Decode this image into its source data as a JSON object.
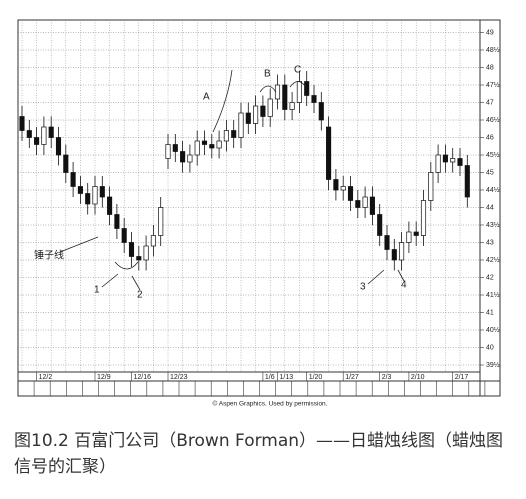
{
  "chart_data": {
    "type": "candlestick",
    "categories": [
      null,
      null,
      "12/2",
      null,
      null,
      null,
      null,
      null,
      null,
      null,
      "12/9",
      null,
      null,
      null,
      null,
      "12/16",
      null,
      null,
      null,
      null,
      "12/23",
      null,
      null,
      null,
      null,
      null,
      null,
      null,
      null,
      null,
      null,
      null,
      null,
      "1/6",
      null,
      "1/13",
      null,
      null,
      null,
      "1/20",
      null,
      null,
      null,
      null,
      "1/27",
      null,
      null,
      null,
      null,
      "2/3",
      null,
      null,
      null,
      "2/10",
      null,
      null,
      null,
      null,
      null,
      "2/17",
      null,
      null
    ],
    "open": [
      46.6,
      46.2,
      46.0,
      45.8,
      46.3,
      46.0,
      45.5,
      45.0,
      44.6,
      44.4,
      44.1,
      44.6,
      44.3,
      43.8,
      43.4,
      43.0,
      42.6,
      42.5,
      42.9,
      43.2,
      45.4,
      45.8,
      45.6,
      45.3,
      45.5,
      45.9,
      45.8,
      45.7,
      45.9,
      46.2,
      46.0,
      46.7,
      46.4,
      46.9,
      46.6,
      47.1,
      47.5,
      46.8,
      47.0,
      47.6,
      47.2,
      47.0,
      46.3,
      44.8,
      44.5,
      44.6,
      44.2,
      44.0,
      44.3,
      43.8,
      43.2,
      42.8,
      42.5,
      43.0,
      43.3,
      43.2,
      44.2,
      45.0,
      45.5,
      45.3,
      45.4,
      45.2
    ],
    "high": [
      46.9,
      46.5,
      46.3,
      46.6,
      46.6,
      46.3,
      45.8,
      45.3,
      44.9,
      44.7,
      44.9,
      44.9,
      44.6,
      44.1,
      43.7,
      43.3,
      42.9,
      43.2,
      43.5,
      44.3,
      46.1,
      46.1,
      45.9,
      45.8,
      46.2,
      46.2,
      46.1,
      46.2,
      46.5,
      46.5,
      47.0,
      47.0,
      47.2,
      47.2,
      47.4,
      47.8,
      47.8,
      47.3,
      47.9,
      47.9,
      47.5,
      47.3,
      46.6,
      45.1,
      44.9,
      44.9,
      44.5,
      44.6,
      44.6,
      44.1,
      43.5,
      43.1,
      43.3,
      43.6,
      43.6,
      44.5,
      45.3,
      45.8,
      45.8,
      45.7,
      45.7,
      45.5
    ],
    "low": [
      45.9,
      45.7,
      45.5,
      45.5,
      45.7,
      45.2,
      44.7,
      44.3,
      44.1,
      43.8,
      43.8,
      44.0,
      43.5,
      43.1,
      42.7,
      42.3,
      42.2,
      42.2,
      42.6,
      42.9,
      45.1,
      45.3,
      45.0,
      45.0,
      45.2,
      45.5,
      45.4,
      45.4,
      45.6,
      45.7,
      45.7,
      46.1,
      46.1,
      46.3,
      46.3,
      46.8,
      46.5,
      46.5,
      46.7,
      46.9,
      46.7,
      46.2,
      44.5,
      44.2,
      44.2,
      43.9,
      43.7,
      43.7,
      43.5,
      42.9,
      42.5,
      42.2,
      42.2,
      42.7,
      42.9,
      42.9,
      43.9,
      44.7,
      45.0,
      45.0,
      44.9,
      44.0
    ],
    "close": [
      46.2,
      46.0,
      45.8,
      46.3,
      46.0,
      45.5,
      45.0,
      44.6,
      44.4,
      44.1,
      44.6,
      44.3,
      43.8,
      43.4,
      43.0,
      42.6,
      42.5,
      42.9,
      43.2,
      44.0,
      45.8,
      45.6,
      45.3,
      45.5,
      45.9,
      45.8,
      45.7,
      45.9,
      46.2,
      46.0,
      46.7,
      46.4,
      46.9,
      46.6,
      47.1,
      47.5,
      46.8,
      47.0,
      47.6,
      47.2,
      47.0,
      46.5,
      44.8,
      44.5,
      44.6,
      44.2,
      44.0,
      44.3,
      43.8,
      43.2,
      42.8,
      42.5,
      43.0,
      43.3,
      43.2,
      44.2,
      45.0,
      45.5,
      45.3,
      45.4,
      45.2,
      44.3
    ],
    "up_color": "#ffffff",
    "down_color": "#111111",
    "ylim": [
      39.3,
      49.3
    ],
    "yticks": [
      {
        "value": 39.5,
        "label": "39½"
      },
      40,
      {
        "value": 40.5,
        "label": "40½"
      },
      41,
      {
        "value": 41.5,
        "label": "41½"
      },
      42,
      {
        "value": 42.5,
        "label": "42½"
      },
      43,
      {
        "value": 43.5,
        "label": "43½"
      },
      44,
      {
        "value": 44.5,
        "label": "44½"
      },
      45,
      {
        "value": 45.5,
        "label": "45½"
      },
      46,
      {
        "value": 46.5,
        "label": "46½"
      },
      47,
      {
        "value": 47.5,
        "label": "47½"
      },
      48,
      {
        "value": 48.5,
        "label": "48½"
      },
      49
    ],
    "grid": true,
    "annotations": [
      "A",
      "B",
      "C",
      "1",
      "2",
      "3",
      "4",
      "锤子线"
    ],
    "credit": "© Aspen Graphics. Used by permission.",
    "caption": "图10.2 百富门公司（Brown Forman）——日蜡烛线图（蜡烛图信号的汇聚）"
  }
}
